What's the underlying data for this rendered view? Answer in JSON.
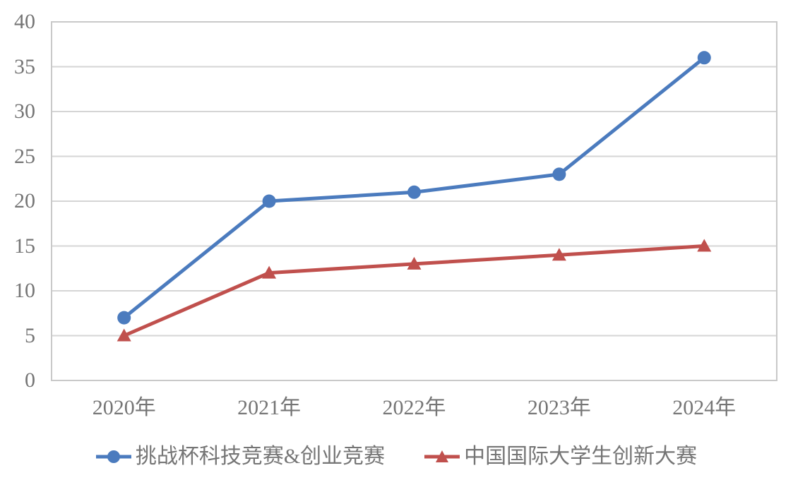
{
  "chart_data": {
    "type": "line",
    "categories": [
      "2020年",
      "2021年",
      "2022年",
      "2023年",
      "2024年"
    ],
    "series": [
      {
        "name": "挑战杯科技竞赛&创业竞赛",
        "values": [
          7,
          20,
          21,
          23,
          36
        ],
        "color": "#4B7BBE",
        "marker": "circle"
      },
      {
        "name": "中国国际大学生创新大赛",
        "values": [
          5,
          12,
          13,
          14,
          15
        ],
        "color": "#C0504D",
        "marker": "triangle"
      }
    ],
    "title": "",
    "xlabel": "",
    "ylabel": "",
    "ylim": [
      0,
      40
    ],
    "ytick_step": 5,
    "ytick_labels": [
      "0",
      "5",
      "10",
      "15",
      "20",
      "25",
      "30",
      "35",
      "40"
    ],
    "grid": true,
    "legend_position": "bottom"
  },
  "colors": {
    "grid": "#D5D5D5",
    "plot_border": "#C9C9C9",
    "text": "#757575",
    "background": "#FFFFFF"
  }
}
